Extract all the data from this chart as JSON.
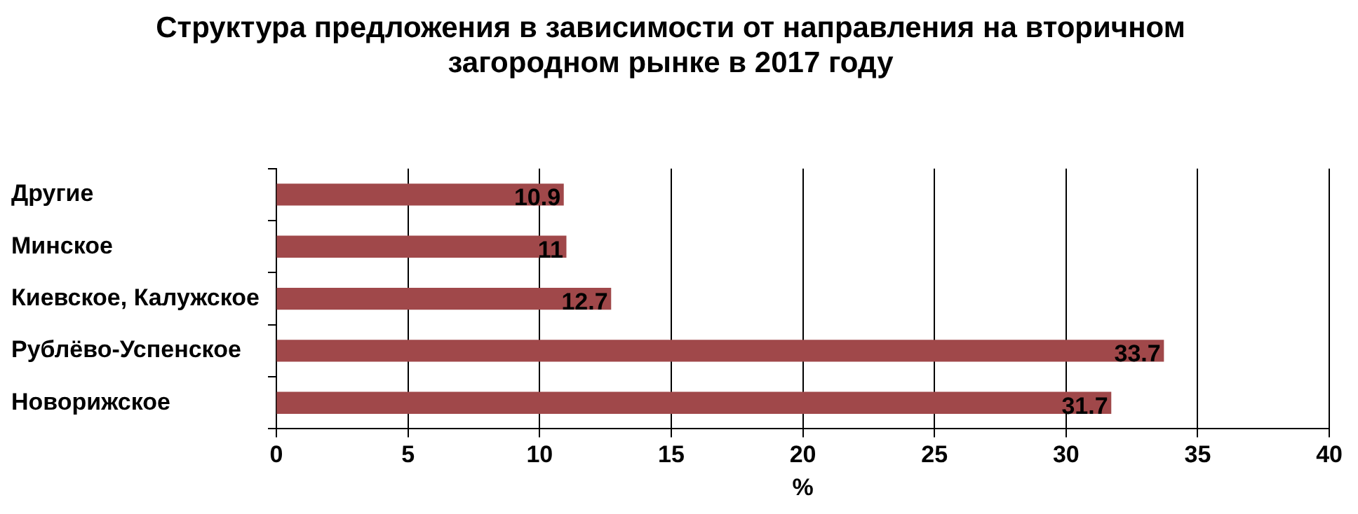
{
  "chart_data": {
    "type": "bar",
    "orientation": "horizontal",
    "title": "Структура предложения в зависимости от направления на вторичном загородном рынке в 2017 году",
    "xlabel": "%",
    "categories": [
      "Другие",
      "Минское",
      "Киевское, Калужское",
      "Рублёво-Успенское",
      "Новорижское"
    ],
    "values": [
      10.9,
      11,
      12.7,
      33.7,
      31.7
    ],
    "color": "#a0484a",
    "xlim": [
      0,
      40
    ],
    "xticks": [
      0,
      5,
      10,
      15,
      20,
      25,
      30,
      35,
      40
    ],
    "grid": "x",
    "data_labels": true,
    "legend": false
  }
}
